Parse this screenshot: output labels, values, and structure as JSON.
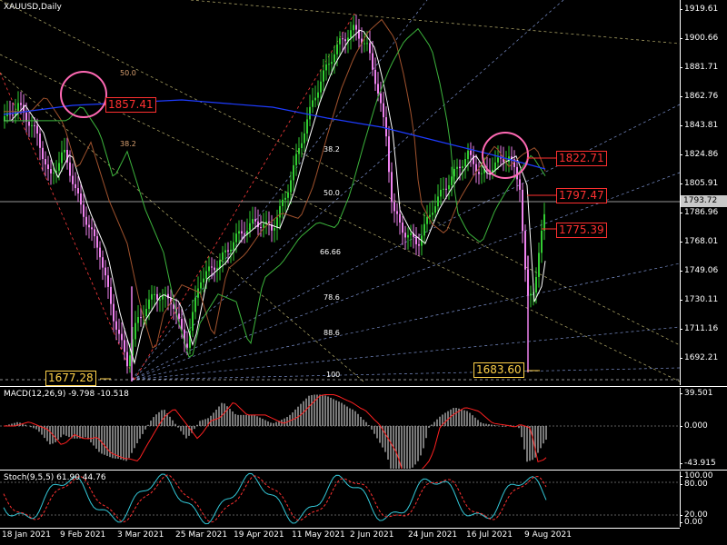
{
  "chart": {
    "symbol_label": "XAUUSD,Daily",
    "current_price": "1793.72",
    "price_ticks": [
      "1919.61",
      "1900.66",
      "1881.71",
      "1862.76",
      "1843.81",
      "1824.86",
      "1805.91",
      "1786.96",
      "1768.01",
      "1749.06",
      "1730.11",
      "1711.16",
      "1692.21"
    ],
    "date_ticks": [
      "18 Jan 2021",
      "9 Feb 2021",
      "3 Mar 2021",
      "25 Mar 2021",
      "19 Apr 2021",
      "11 May 2021",
      "2 Jun 2021",
      "24 Jun 2021",
      "16 Jul 2021",
      "9 Aug 2021"
    ],
    "fib_left": [
      "50.0",
      "38.2"
    ],
    "fib_right": [
      "38.2",
      "50.0",
      "66.66",
      "78.6",
      "88.6",
      "100"
    ],
    "price_labels": {
      "p1857": "1857.41",
      "p1822": "1822.71",
      "p1797": "1797.47",
      "p1775": "1775.39",
      "p1677": "1677.28",
      "p1683": "1683.60"
    },
    "colors": {
      "bull": "#32cd32",
      "bear": "#ee82ee",
      "ma_white": "#ffffff",
      "ma_blue": "#1e3cff",
      "ma_green": "#3cb43c",
      "ma_brown": "#a0522d",
      "highlight_circle": "#ff69b4"
    }
  },
  "macd": {
    "label": "MACD(12,26,9) -9.798 -10.518",
    "ticks": [
      "39.501",
      "0.000",
      "-43.915"
    ]
  },
  "stoch": {
    "label": "Stoch(9,5,5) 61.90 44.76",
    "ticks": [
      "100.00",
      "80.00",
      "20.00",
      "0.00"
    ]
  }
}
